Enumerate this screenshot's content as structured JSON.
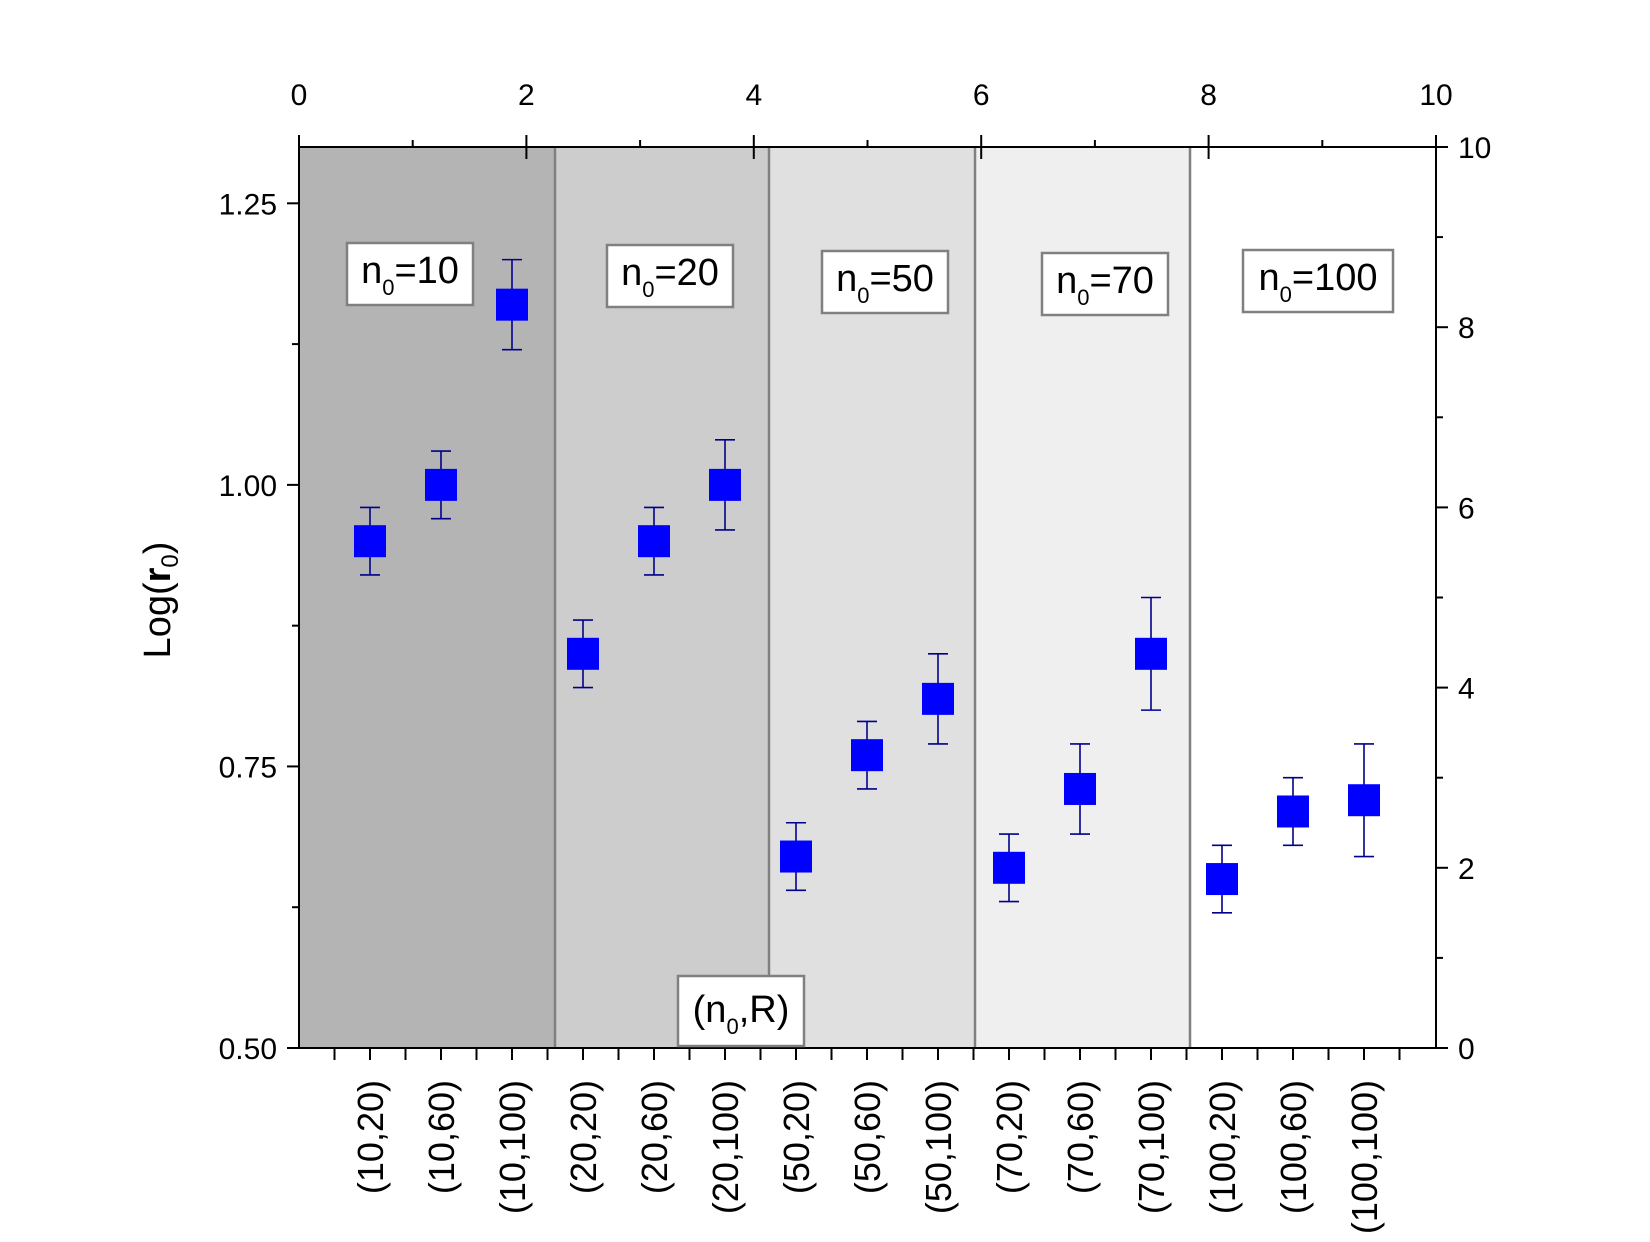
{
  "chart_data": {
    "type": "scatter",
    "title": "",
    "ylabel": "Log(r₀)",
    "ylabel_parts": {
      "prefix": "Log(",
      "bold": "r",
      "subscript": "0",
      "suffix": ")"
    },
    "ylim": [
      0.5,
      1.3
    ],
    "yticks": [
      "0.50",
      "0.75",
      "1.00",
      "1.25"
    ],
    "top_axis": {
      "range": [
        0,
        10
      ],
      "ticks": [
        "0",
        "2",
        "4",
        "6",
        "8",
        "10"
      ]
    },
    "right_axis": {
      "range": [
        0,
        10
      ],
      "ticks": [
        "0",
        "2",
        "4",
        "6",
        "8",
        "10"
      ]
    },
    "xlabel_box": {
      "prefix": "(n",
      "subscript": "0",
      "suffix": ",R)"
    },
    "categories": [
      "(10,20)",
      "(10,60)",
      "(10,100)",
      "(20,20)",
      "(20,60)",
      "(20,100)",
      "(50,20)",
      "(50,60)",
      "(50,100)",
      "(70,20)",
      "(70,60)",
      "(70,100)",
      "(100,20)",
      "(100,60)",
      "(100,100)"
    ],
    "series": [
      {
        "name": "Log(r0)",
        "marker": "square",
        "color": "#0000ff",
        "values": [
          0.95,
          1.0,
          1.16,
          0.85,
          0.95,
          1.0,
          0.67,
          0.76,
          0.81,
          0.66,
          0.73,
          0.85,
          0.65,
          0.71,
          0.72
        ],
        "err_low": [
          0.92,
          0.97,
          1.12,
          0.82,
          0.92,
          0.96,
          0.64,
          0.73,
          0.77,
          0.63,
          0.69,
          0.8,
          0.62,
          0.68,
          0.67
        ],
        "err_high": [
          0.98,
          1.03,
          1.2,
          0.88,
          0.98,
          1.04,
          0.7,
          0.79,
          0.85,
          0.69,
          0.77,
          0.9,
          0.68,
          0.74,
          0.77
        ]
      }
    ],
    "regions": [
      {
        "label_prefix": "n",
        "label_subscript": "0",
        "label_suffix": "=10",
        "color": "#b4b4b4"
      },
      {
        "label_prefix": "n",
        "label_subscript": "0",
        "label_suffix": "=20",
        "color": "#cdcdcd"
      },
      {
        "label_prefix": "n",
        "label_subscript": "0",
        "label_suffix": "=50",
        "color": "#e0e0e0"
      },
      {
        "label_prefix": "n",
        "label_subscript": "0",
        "label_suffix": "=70",
        "color": "#efefef"
      },
      {
        "label_prefix": "n",
        "label_subscript": "0",
        "label_suffix": "=100",
        "color": "#ffffff"
      }
    ],
    "colors": {
      "marker": "#0000ff",
      "errorbar": "#00008b",
      "divider": "#808080",
      "axis": "#000000"
    }
  }
}
